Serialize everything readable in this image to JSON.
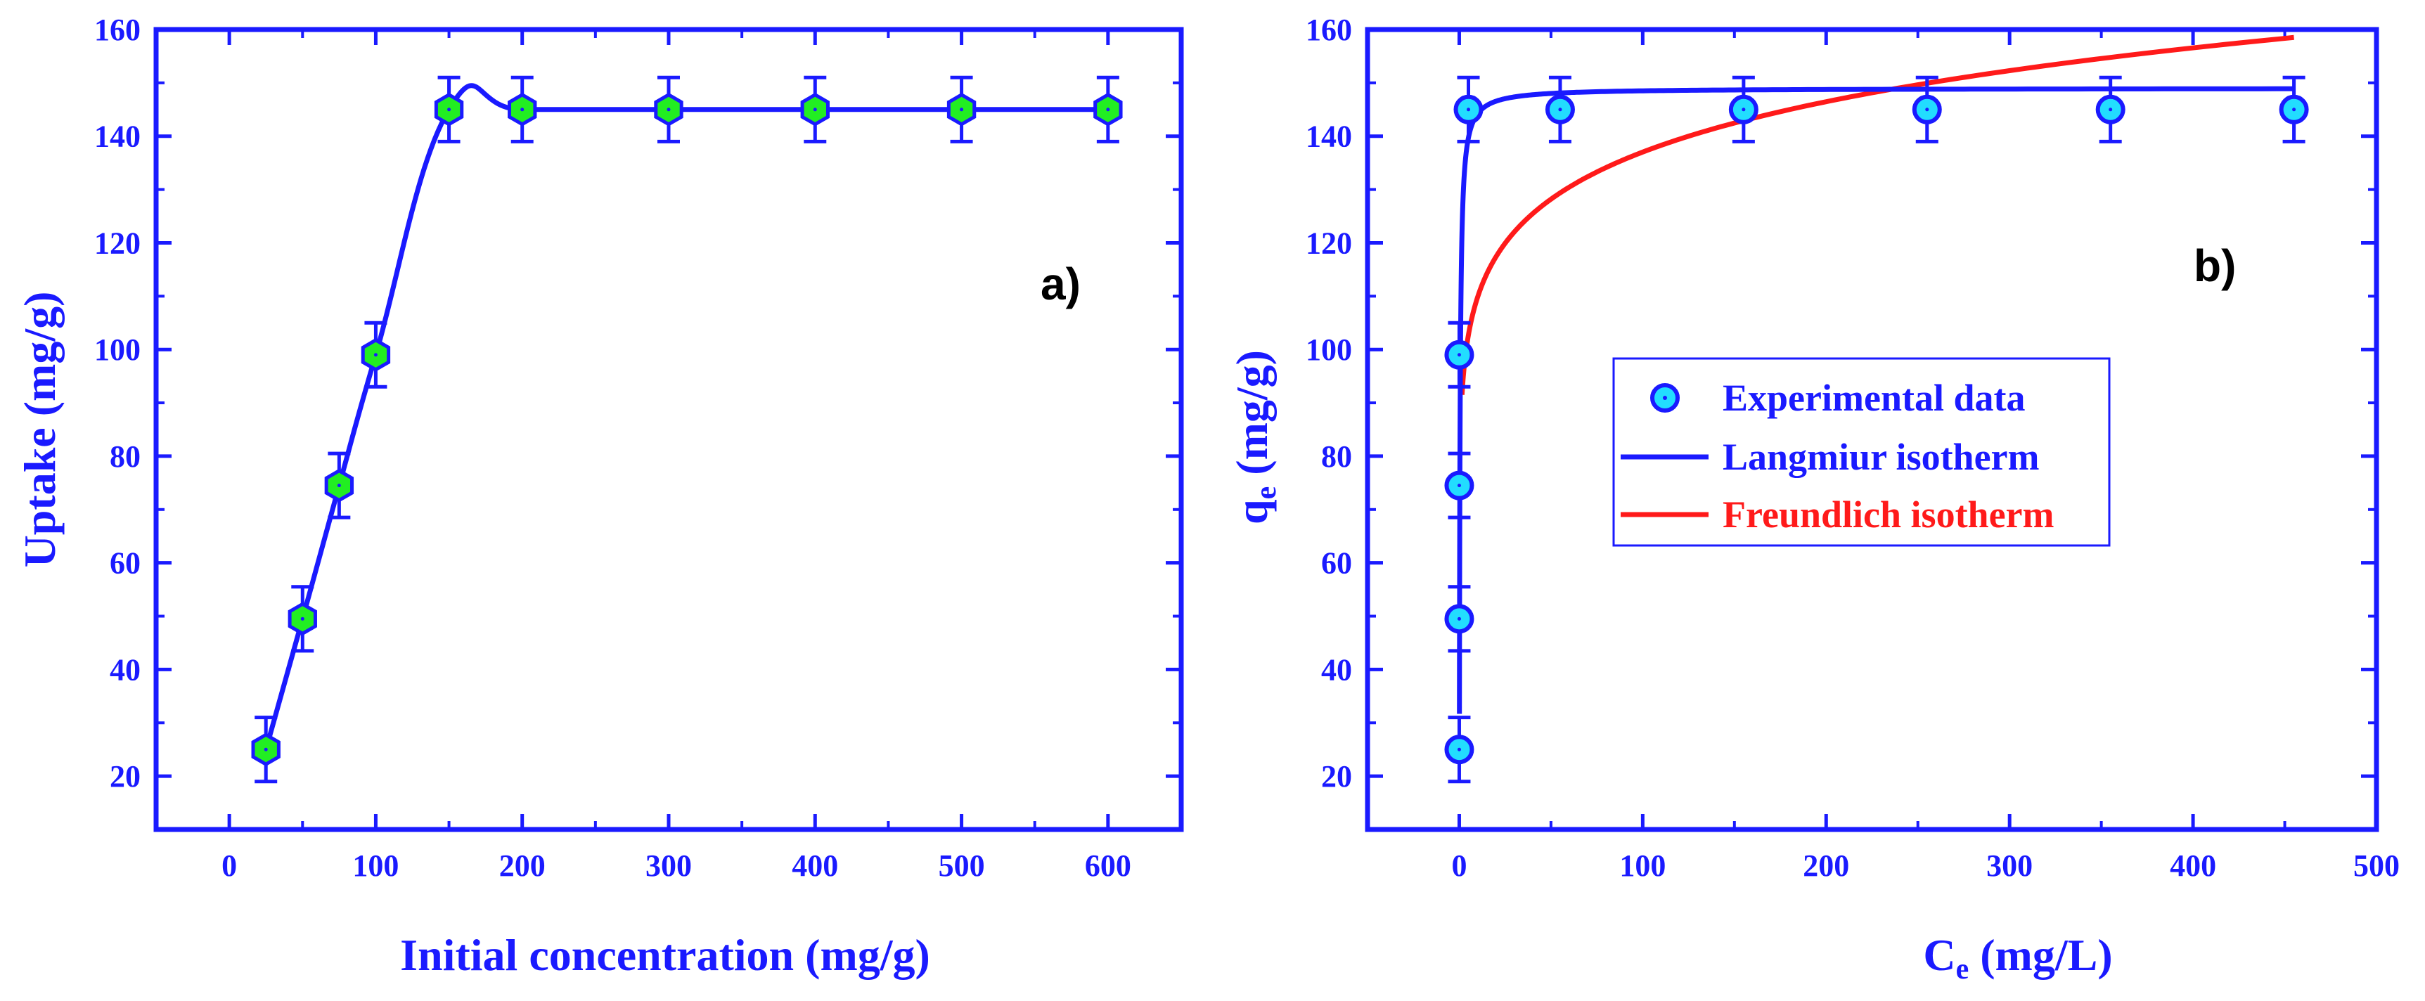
{
  "colors": {
    "axis": "#1a1aff",
    "langmuir": "#1a1aff",
    "freundlich": "#ff1a1a",
    "marker_a_fill": "#22ee22",
    "marker_b_fill": "#22ddff",
    "panel_label": "#000000"
  },
  "chart_data": [
    {
      "id": "a",
      "type": "line",
      "panel_label": "a)",
      "xlabel": "Initial concentration (mg/g)",
      "ylabel": "Uptake (mg/g)",
      "xlim": [
        -50,
        650
      ],
      "ylim": [
        10,
        160
      ],
      "xticks": [
        0,
        100,
        200,
        300,
        400,
        500,
        600
      ],
      "yticks": [
        20,
        40,
        60,
        80,
        100,
        120,
        140,
        160
      ],
      "marker": "hexagon",
      "series": [
        {
          "name": "Uptake",
          "x": [
            25,
            50,
            75,
            100,
            150,
            200,
            300,
            400,
            500,
            600
          ],
          "y": [
            25,
            49.5,
            74.5,
            99,
            145,
            145,
            145,
            145,
            145,
            145
          ],
          "yerr": [
            6,
            6,
            6,
            6,
            6,
            6,
            6,
            6,
            6,
            6
          ]
        }
      ]
    },
    {
      "id": "b",
      "type": "scatter",
      "panel_label": "b)",
      "xlabel_main": "C",
      "xlabel_sub": "e",
      "xlabel_rest": " (mg/L)",
      "ylabel_main": "q",
      "ylabel_sub": "e",
      "ylabel_rest": " (mg/g)",
      "xlim": [
        -50,
        500
      ],
      "ylim": [
        10,
        160
      ],
      "xticks": [
        0,
        100,
        200,
        300,
        400,
        500
      ],
      "yticks": [
        20,
        40,
        60,
        80,
        100,
        120,
        140,
        160
      ],
      "marker": "circle",
      "series": [
        {
          "name": "Experimental data",
          "x": [
            0,
            0,
            0,
            0,
            5,
            55,
            155,
            255,
            355,
            455
          ],
          "y": [
            25,
            49.5,
            74.5,
            99,
            145,
            145,
            145,
            145,
            145,
            145
          ],
          "yerr": [
            6,
            6,
            6,
            6,
            6,
            6,
            6,
            6,
            6,
            6
          ]
        },
        {
          "name": "Langmiur isotherm",
          "model": "langmuir",
          "qmax": 149,
          "KL": 3,
          "x_range": [
            0.09,
            455
          ]
        },
        {
          "name": "Freundlich isotherm",
          "model": "freundlich",
          "KF": 88,
          "n": 10.4,
          "x_range": [
            1.5,
            455
          ]
        }
      ],
      "legend": [
        "Experimental data",
        "Langmiur isotherm",
        "Freundlich isotherm"
      ],
      "legend_position": "center-right"
    }
  ]
}
